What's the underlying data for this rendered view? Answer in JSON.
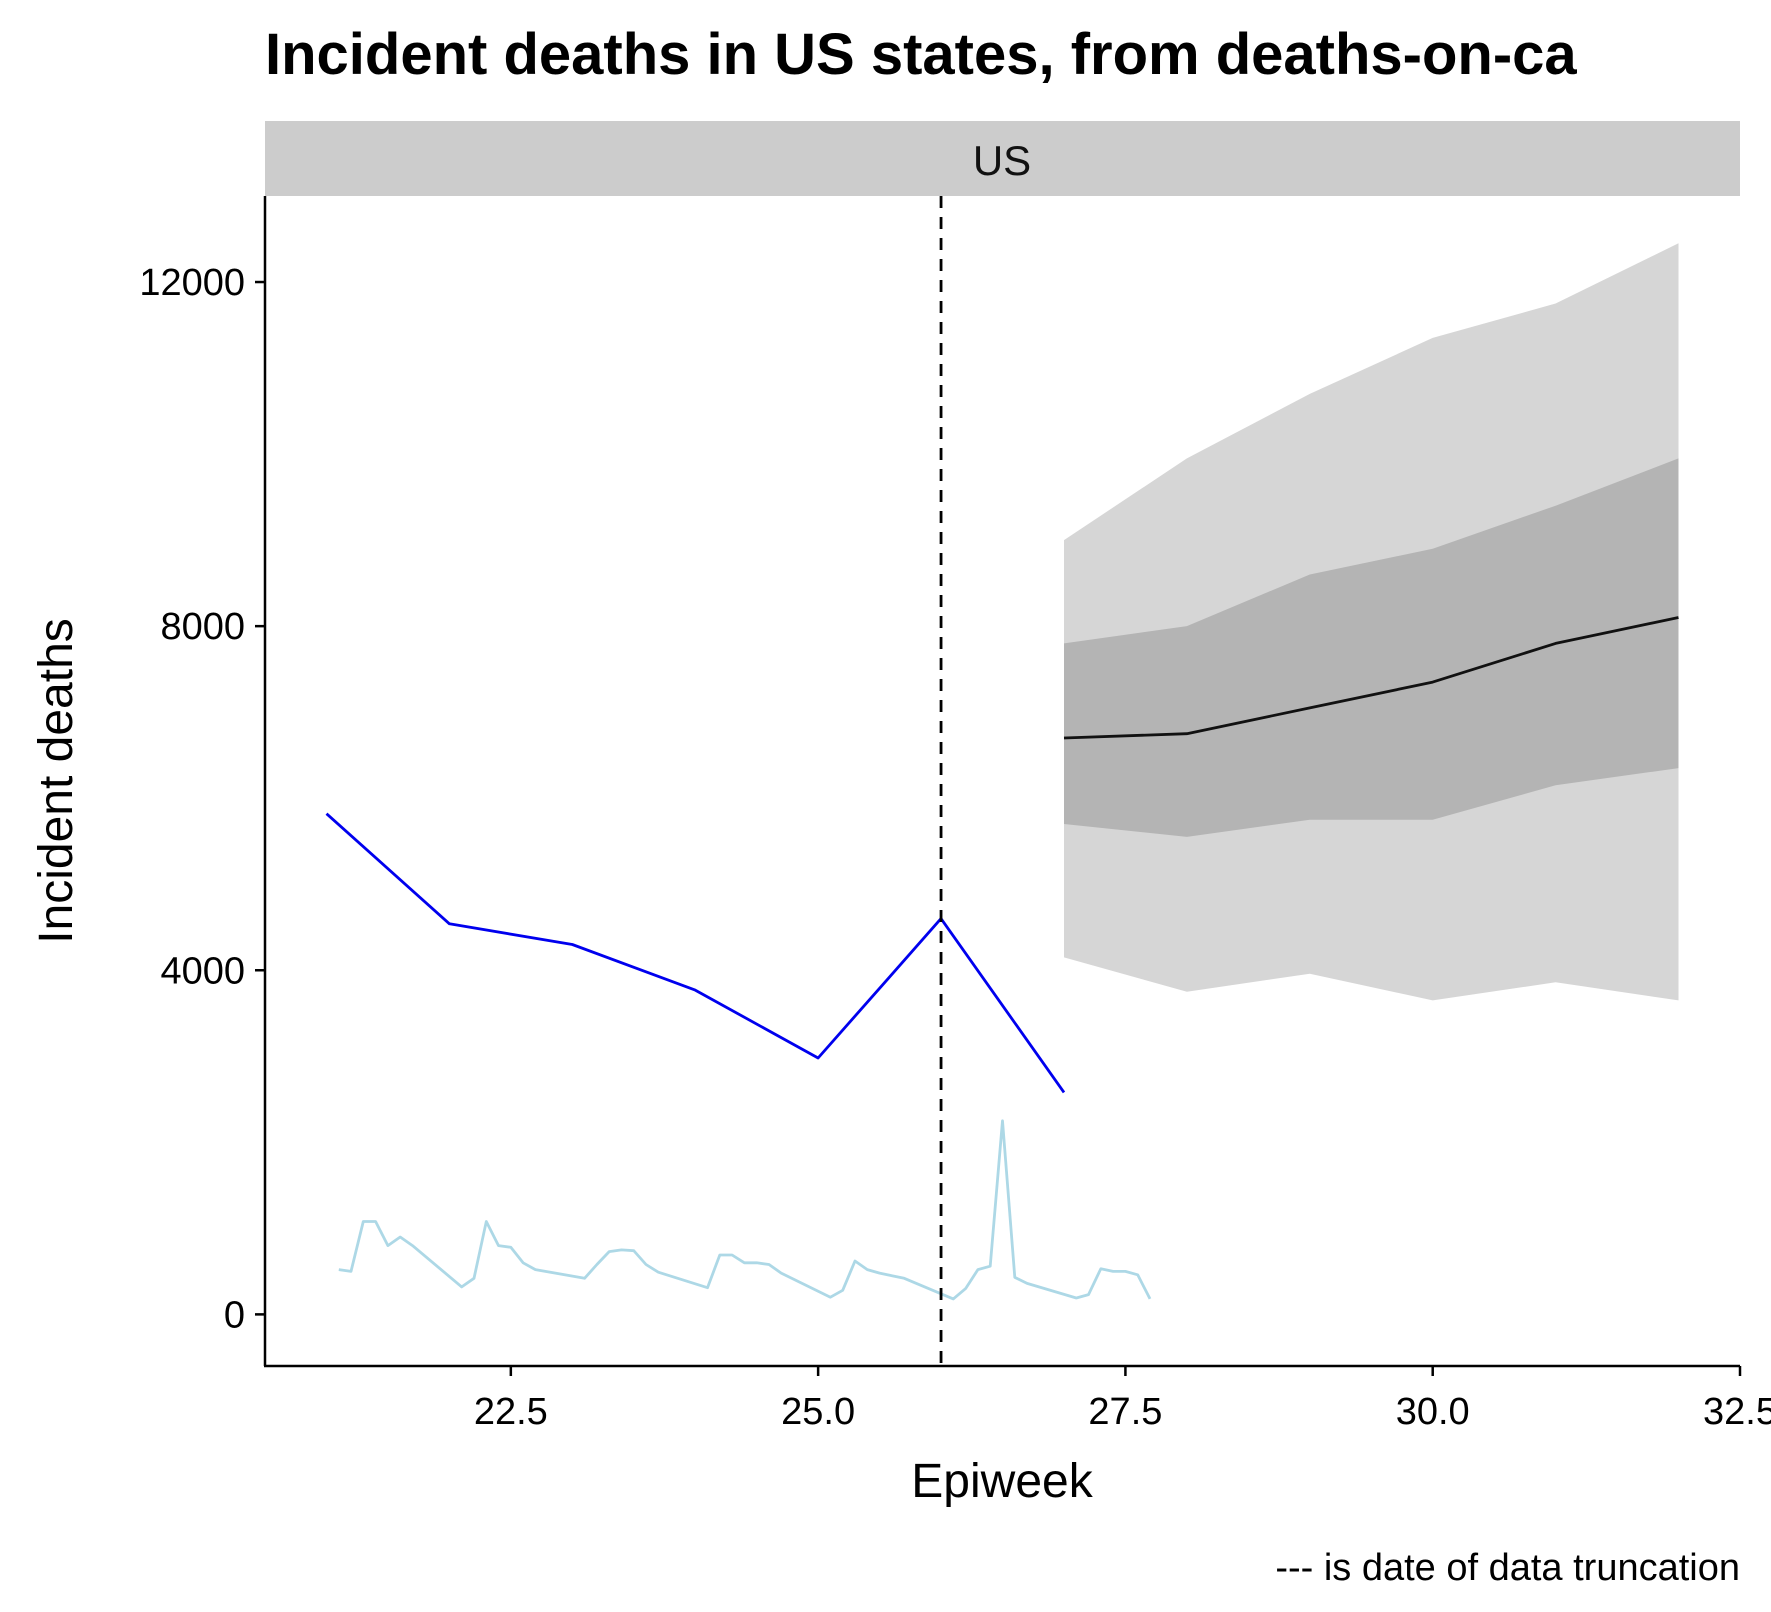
{
  "chart_data": {
    "type": "line",
    "title": "Incident deaths in US states, from deaths-on-ca",
    "facet_label": "US",
    "xlabel": "Epiweek",
    "ylabel": "Incident deaths",
    "caption": "--- is date of data truncation",
    "xlim": [
      20.5,
      32.5
    ],
    "ylim": [
      -600,
      13000
    ],
    "x_ticks": [
      22.5,
      25.0,
      27.5,
      30.0,
      32.5
    ],
    "x_tick_labels": [
      "22.5",
      "25.0",
      "27.5",
      "30.0",
      "32.5"
    ],
    "y_ticks": [
      0,
      4000,
      8000,
      12000
    ],
    "y_tick_labels": [
      "0",
      "4000",
      "8000",
      "12000"
    ],
    "truncation_x": 26,
    "grid": false,
    "colors": {
      "weekly": "#0000ee",
      "daily": "#add8e6",
      "median": "#111111",
      "band_outer": "#d6d6d6",
      "band_inner": "#b4b4b4",
      "strip": "#cccccc",
      "truncation": "#000000"
    },
    "series": [
      {
        "kind": "weekly",
        "x": [
          21,
          22,
          23,
          24,
          25,
          26,
          27
        ],
        "y": [
          5820,
          4540,
          4300,
          3770,
          2980,
          4600,
          2580
        ]
      },
      {
        "kind": "daily",
        "x": [
          21.1,
          21.2,
          21.3,
          21.4,
          21.5,
          21.6,
          21.7,
          22.1,
          22.2,
          22.3,
          22.4,
          22.5,
          22.6,
          22.7,
          23.1,
          23.2,
          23.3,
          23.4,
          23.5,
          23.6,
          23.7,
          24.1,
          24.2,
          24.3,
          24.4,
          24.5,
          24.6,
          24.7,
          25.1,
          25.2,
          25.3,
          25.4,
          25.5,
          25.6,
          25.7,
          26.1,
          26.2,
          26.3,
          26.4,
          26.5,
          26.6,
          26.7,
          27.1,
          27.2,
          27.3,
          27.4,
          27.5,
          27.6,
          27.7
        ],
        "y": [
          520,
          500,
          1080,
          1080,
          800,
          900,
          800,
          320,
          420,
          1080,
          800,
          780,
          600,
          520,
          420,
          580,
          730,
          750,
          740,
          580,
          490,
          310,
          690,
          690,
          600,
          600,
          580,
          480,
          200,
          280,
          620,
          520,
          480,
          450,
          420,
          180,
          300,
          520,
          560,
          2250,
          430,
          360,
          190,
          230,
          530,
          500,
          500,
          460,
          180
        ]
      },
      {
        "kind": "forecast",
        "x": [
          27,
          28,
          29,
          30,
          31,
          32
        ],
        "median": [
          6700,
          6750,
          7050,
          7350,
          7800,
          8100
        ],
        "inner_lower": [
          5700,
          5550,
          5750,
          5750,
          6150,
          6350
        ],
        "inner_upper": [
          7800,
          8000,
          8600,
          8900,
          9400,
          9950
        ],
        "outer_lower": [
          4150,
          3750,
          3960,
          3650,
          3860,
          3650
        ],
        "outer_upper": [
          9000,
          9950,
          10700,
          11350,
          11750,
          12450
        ]
      }
    ]
  }
}
